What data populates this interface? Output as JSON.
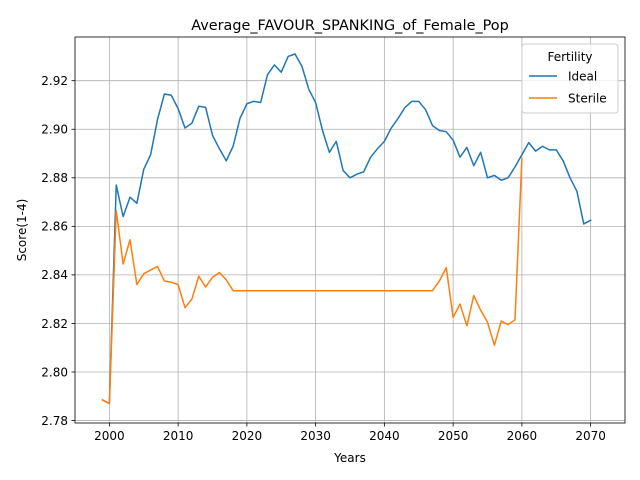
{
  "chart_data": {
    "type": "line",
    "title": "Average_FAVOUR_SPANKING_of_Female_Pop",
    "xlabel": "Years",
    "ylabel": "Score(1-4)",
    "xlim": [
      1995,
      2075
    ],
    "ylim": [
      2.779,
      2.938
    ],
    "xticks": [
      2000,
      2010,
      2020,
      2030,
      2040,
      2050,
      2060,
      2070
    ],
    "yticks": [
      2.78,
      2.8,
      2.82,
      2.84,
      2.86,
      2.88,
      2.9,
      2.92
    ],
    "xtick_labels": [
      "2000",
      "2010",
      "2020",
      "2030",
      "2040",
      "2050",
      "2060",
      "2070"
    ],
    "ytick_labels": [
      "2.78",
      "2.80",
      "2.82",
      "2.84",
      "2.86",
      "2.88",
      "2.90",
      "2.92"
    ],
    "grid": true,
    "legend": {
      "title": "Fertility",
      "placement": "top-right"
    },
    "series": [
      {
        "name": "Ideal",
        "color": "#1f77b4",
        "x": [
          1999,
          2000,
          2001,
          2002,
          2003,
          2004,
          2005,
          2006,
          2007,
          2008,
          2009,
          2010,
          2011,
          2012,
          2013,
          2014,
          2015,
          2016,
          2017,
          2018,
          2019,
          2020,
          2021,
          2022,
          2023,
          2024,
          2025,
          2026,
          2027,
          2028,
          2029,
          2030,
          2031,
          2032,
          2033,
          2034,
          2035,
          2036,
          2037,
          2038,
          2039,
          2040,
          2041,
          2042,
          2043,
          2044,
          2045,
          2046,
          2047,
          2048,
          2049,
          2050,
          2051,
          2052,
          2053,
          2054,
          2055,
          2056,
          2057,
          2058,
          2059,
          2060,
          2061,
          2062,
          2063,
          2064,
          2065,
          2066,
          2067,
          2068,
          2069,
          2070
        ],
        "values": [
          2.7885,
          2.787,
          2.877,
          2.864,
          2.872,
          2.8695,
          2.8835,
          2.8895,
          2.904,
          2.9145,
          2.914,
          2.9085,
          2.9005,
          2.9025,
          2.9095,
          2.909,
          2.8975,
          2.892,
          2.887,
          2.893,
          2.9045,
          2.9105,
          2.9115,
          2.911,
          2.9225,
          2.9265,
          2.9235,
          2.93,
          2.931,
          2.926,
          2.9165,
          2.911,
          2.8995,
          2.8905,
          2.895,
          2.883,
          2.88,
          2.8815,
          2.8825,
          2.8885,
          2.892,
          2.895,
          2.9005,
          2.9045,
          2.909,
          2.9115,
          2.9115,
          2.908,
          2.9015,
          2.8995,
          2.899,
          2.8955,
          2.8885,
          2.8925,
          2.885,
          2.8905,
          2.88,
          2.881,
          2.879,
          2.88,
          2.8845,
          2.8895,
          2.8945,
          2.891,
          2.893,
          2.8915,
          2.8915,
          2.887,
          2.88,
          2.8745,
          2.861,
          2.8625
        ]
      },
      {
        "name": "Sterile",
        "color": "#ff7f0e",
        "x": [
          1999,
          2000,
          2001,
          2002,
          2003,
          2004,
          2005,
          2006,
          2007,
          2008,
          2009,
          2010,
          2011,
          2012,
          2013,
          2014,
          2015,
          2016,
          2017,
          2018,
          2019,
          2020,
          2021,
          2022,
          2023,
          2024,
          2025,
          2026,
          2027,
          2028,
          2029,
          2030,
          2031,
          2032,
          2033,
          2034,
          2035,
          2036,
          2037,
          2038,
          2039,
          2040,
          2041,
          2042,
          2043,
          2044,
          2045,
          2046,
          2047,
          2048,
          2049,
          2050,
          2051,
          2052,
          2053,
          2054,
          2055,
          2056,
          2057,
          2058,
          2059,
          2060
        ],
        "values": [
          2.7885,
          2.787,
          2.8665,
          2.8445,
          2.8545,
          2.836,
          2.8405,
          2.842,
          2.8435,
          2.8375,
          2.837,
          2.836,
          2.8265,
          2.83,
          2.8395,
          2.835,
          2.839,
          2.841,
          2.838,
          2.8335,
          2.8335,
          2.8335,
          2.8335,
          2.8335,
          2.8335,
          2.8335,
          2.8335,
          2.8335,
          2.8335,
          2.8335,
          2.8335,
          2.8335,
          2.8335,
          2.8335,
          2.8335,
          2.8335,
          2.8335,
          2.8335,
          2.8335,
          2.8335,
          2.8335,
          2.8335,
          2.8335,
          2.8335,
          2.8335,
          2.8335,
          2.8335,
          2.8335,
          2.8335,
          2.8375,
          2.843,
          2.8225,
          2.828,
          2.819,
          2.8315,
          2.8255,
          2.8205,
          2.811,
          2.821,
          2.8195,
          2.8215,
          2.888
        ]
      }
    ]
  }
}
